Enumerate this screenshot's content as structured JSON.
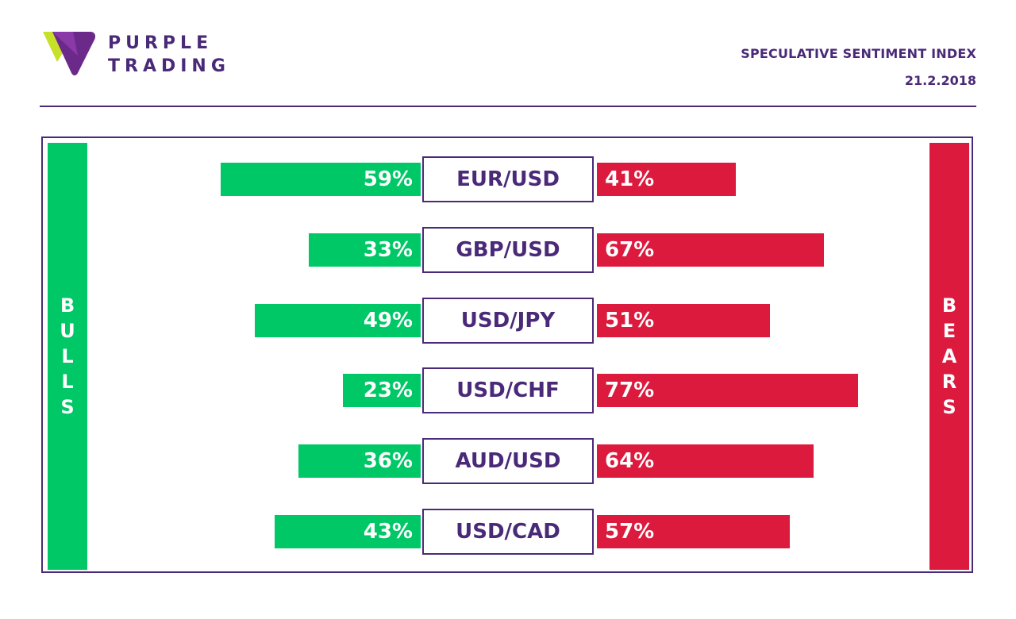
{
  "brand": {
    "line1": "PURPLE",
    "line2": "TRADING"
  },
  "header": {
    "title": "SPECULATIVE SENTIMENT INDEX",
    "date": "21.2.2018"
  },
  "sides": {
    "bulls": "BULLS",
    "bears": "BEARS"
  },
  "colors": {
    "bull": "#00c866",
    "bear": "#dc1a3e",
    "brand": "#4a2a78"
  },
  "chart_data": {
    "type": "bar",
    "categories": [
      "EUR/USD",
      "GBP/USD",
      "USD/JPY",
      "USD/CHF",
      "AUD/USD",
      "USD/CAD"
    ],
    "series": [
      {
        "name": "BULLS",
        "values": [
          59,
          33,
          49,
          23,
          36,
          43
        ],
        "labels": [
          "59%",
          "33%",
          "49%",
          "23%",
          "36%",
          "43%"
        ]
      },
      {
        "name": "BEARS",
        "values": [
          41,
          67,
          51,
          77,
          64,
          57
        ],
        "labels": [
          "41%",
          "67%",
          "51%",
          "77%",
          "64%",
          "57%"
        ]
      }
    ]
  }
}
